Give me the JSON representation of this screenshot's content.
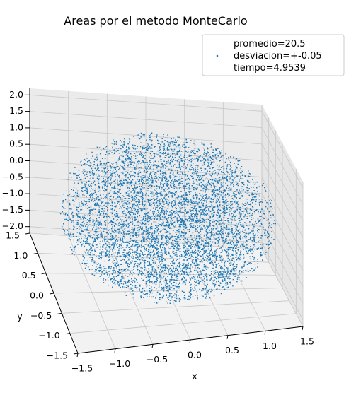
{
  "chart_data": {
    "type": "scatter",
    "projection": "3d",
    "title": "Areas por el metodo MonteCarlo",
    "xlabel": "x",
    "ylabel": "y",
    "zlabel": "",
    "xlim": [
      -1.5,
      1.5
    ],
    "ylim": [
      -1.5,
      1.5
    ],
    "zlim": [
      -2.2,
      2.2
    ],
    "x_ticks": [
      "−1.5",
      "−1.0",
      "−0.5",
      "0.0",
      "0.5",
      "1.0",
      "1.5"
    ],
    "y_ticks": [
      "−1.5",
      "−1.0",
      "−0.5",
      "0.0",
      "0.5",
      "1.0",
      "1.5"
    ],
    "z_ticks": [
      "−2.0",
      "−1.5",
      "−1.0",
      "−0.5",
      "0.0",
      "0.5",
      "1.0",
      "1.5",
      "2.0"
    ],
    "grid": true,
    "legend_position": "top-right",
    "legend": [
      "promedio=20.5",
      "desviacion=+-0.05",
      "tiempo=4.9539"
    ],
    "series": [
      {
        "kind": "uniform-random-points-in-ellipsoid",
        "color": "#1f77b4",
        "semi_axes": [
          1.4,
          1.4,
          2.2
        ],
        "center": [
          0,
          0,
          0
        ],
        "count": 9000
      }
    ]
  }
}
